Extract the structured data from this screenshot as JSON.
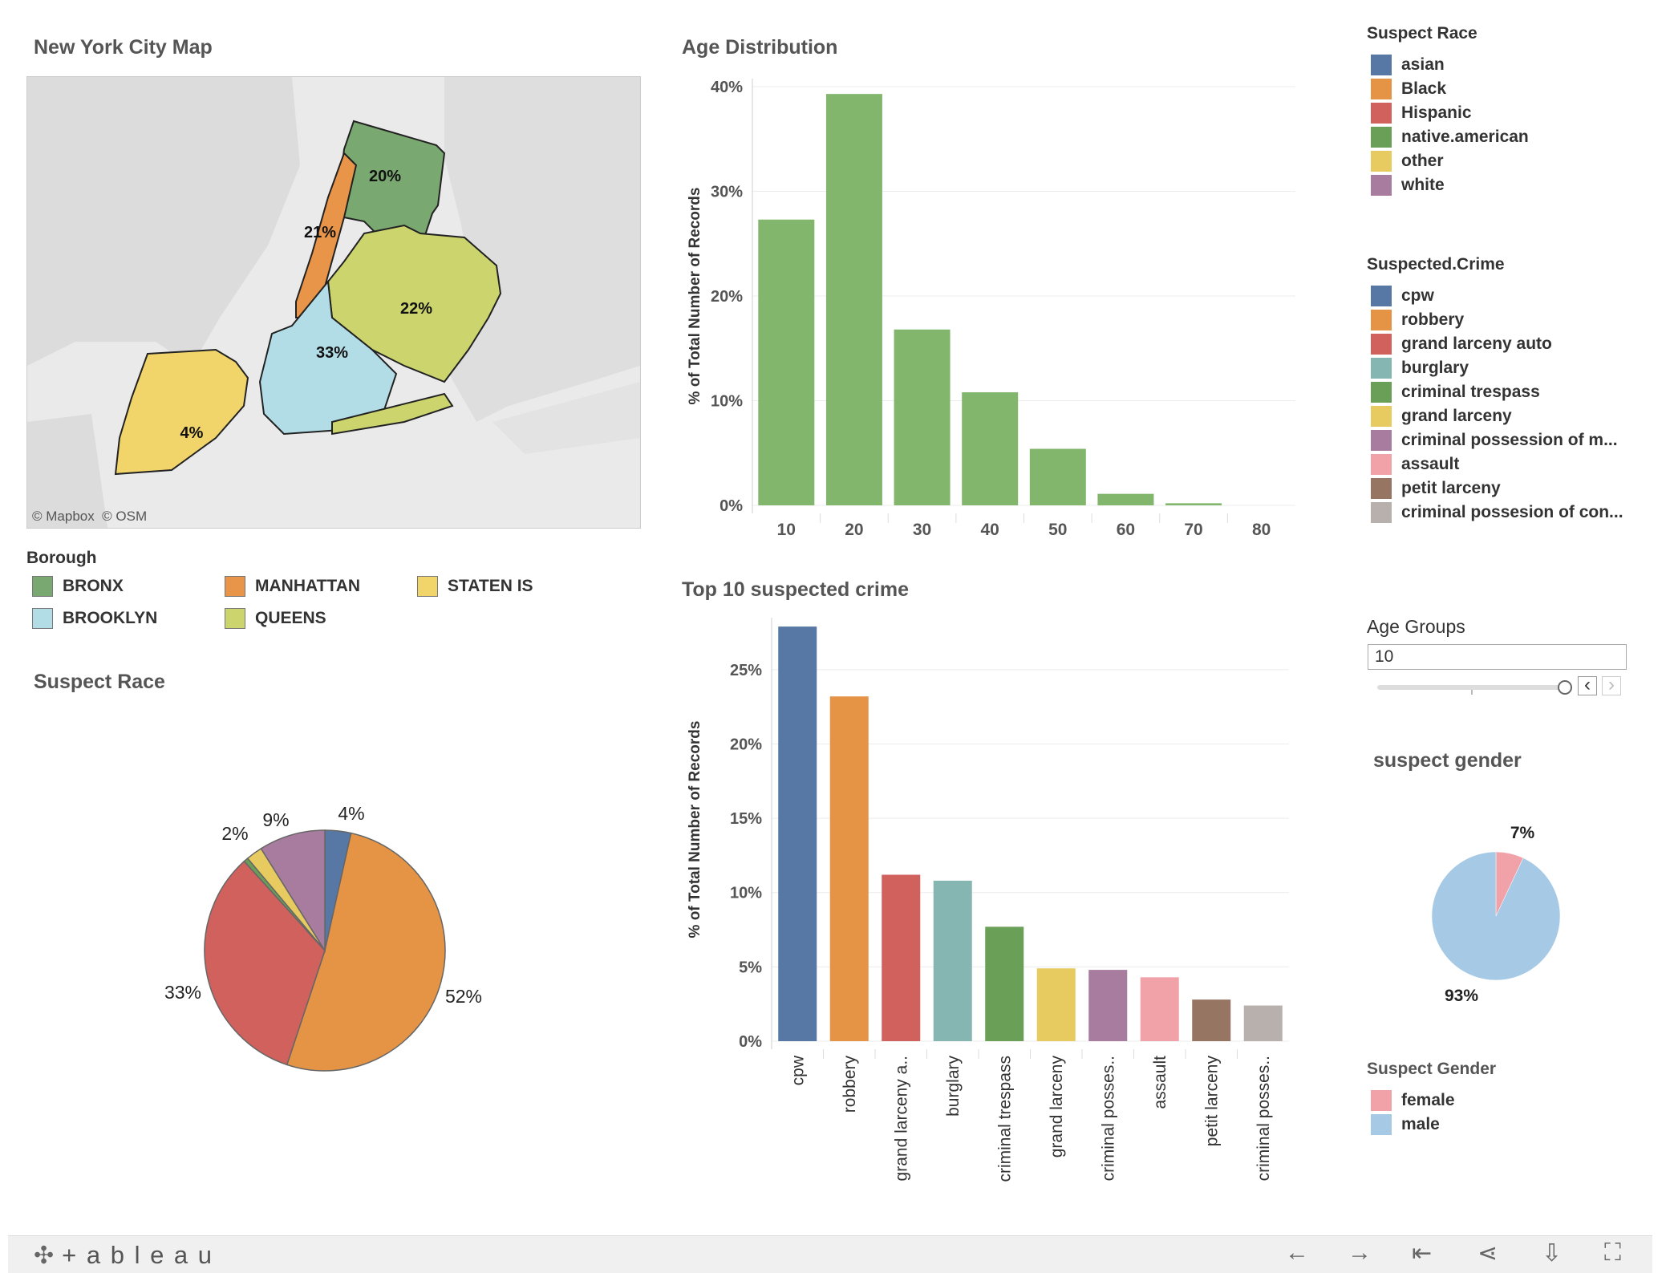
{
  "map": {
    "title": "New York City Map",
    "attribution": "© Mapbox  © OSM",
    "boroughs": [
      {
        "name": "BRONX",
        "label": "20%",
        "color": "#7aa871"
      },
      {
        "name": "MANHATTAN",
        "label": "21%",
        "color": "#e8954a"
      },
      {
        "name": "QUEENS",
        "label": "22%",
        "color": "#ccd46e"
      },
      {
        "name": "BROOKLYN",
        "label": "33%",
        "color": "#b3dde6"
      },
      {
        "name": "STATEN IS",
        "label": "4%",
        "color": "#f2d56a"
      }
    ]
  },
  "borough_legend": {
    "title": "Borough",
    "items": [
      {
        "label": "BRONX",
        "color": "#7aa871"
      },
      {
        "label": "MANHATTAN",
        "color": "#e8954a"
      },
      {
        "label": "STATEN IS",
        "color": "#f2d56a"
      },
      {
        "label": "BROOKLYN",
        "color": "#b3dde6"
      },
      {
        "label": "QUEENS",
        "color": "#ccd46e"
      }
    ]
  },
  "race_pie": {
    "title": "Suspect Race"
  },
  "age_chart": {
    "title": "Age Distribution"
  },
  "crime_chart": {
    "title": "Top 10 suspected crime"
  },
  "suspect_race_legend": {
    "title": "Suspect Race",
    "items": [
      {
        "label": "asian",
        "color": "#5778a4"
      },
      {
        "label": "Black",
        "color": "#e49444"
      },
      {
        "label": "Hispanic",
        "color": "#d1615d"
      },
      {
        "label": "native.american",
        "color": "#6a9f58"
      },
      {
        "label": "other",
        "color": "#e7ca60"
      },
      {
        "label": "white",
        "color": "#a87c9f"
      }
    ]
  },
  "crime_legend": {
    "title": "Suspected.Crime",
    "items": [
      {
        "label": "cpw",
        "color": "#5778a4"
      },
      {
        "label": "robbery",
        "color": "#e49444"
      },
      {
        "label": "grand larceny auto",
        "color": "#d1615d"
      },
      {
        "label": "burglary",
        "color": "#85b6b2"
      },
      {
        "label": "criminal trespass",
        "color": "#6a9f58"
      },
      {
        "label": "grand larceny",
        "color": "#e7ca60"
      },
      {
        "label": "criminal possession of m...",
        "color": "#a87c9f"
      },
      {
        "label": "assault",
        "color": "#f1a2a9"
      },
      {
        "label": "petit larceny",
        "color": "#967662"
      },
      {
        "label": "criminal possesion of con...",
        "color": "#b8b0ac"
      }
    ]
  },
  "age_filter": {
    "title": "Age Groups",
    "value": "10",
    "prev": "‹",
    "next": "›"
  },
  "gender_pie": {
    "title": "suspect gender"
  },
  "gender_legend": {
    "title": "Suspect Gender",
    "items": [
      {
        "label": "female",
        "color": "#f1a2a9"
      },
      {
        "label": "male",
        "color": "#a6cae6"
      }
    ]
  },
  "footer": {
    "logo": "+ a b l e a u"
  },
  "chart_data": [
    {
      "type": "bar",
      "title": "Age Distribution",
      "categories": [
        "10",
        "20",
        "30",
        "40",
        "50",
        "60",
        "70",
        "80"
      ],
      "values": [
        27.3,
        39.3,
        16.8,
        10.8,
        5.4,
        1.1,
        0.2,
        0
      ],
      "ylabel": "% of Total Number of Records",
      "ylim": [
        0,
        40
      ],
      "yticks": [
        "0%",
        "10%",
        "20%",
        "30%",
        "40%"
      ],
      "color": "#82b66c",
      "grid": true
    },
    {
      "type": "bar",
      "title": "Top 10 suspected crime",
      "categories": [
        "cpw",
        "robbery",
        "grand larceny a..",
        "burglary",
        "criminal trespass",
        "grand larceny",
        "criminal posses..",
        "assault",
        "petit larceny",
        "criminal posses.."
      ],
      "values": [
        27.9,
        23.2,
        11.2,
        10.8,
        7.7,
        4.9,
        4.8,
        4.3,
        2.8,
        2.4
      ],
      "colors": [
        "#5778a4",
        "#e49444",
        "#d1615d",
        "#85b6b2",
        "#6a9f58",
        "#e7ca60",
        "#a87c9f",
        "#f1a2a9",
        "#967662",
        "#b8b0ac"
      ],
      "ylabel": "% of Total Number of Records",
      "ylim": [
        0,
        28.5
      ],
      "yticks": [
        "0%",
        "5%",
        "10%",
        "15%",
        "20%",
        "25%"
      ],
      "grid": true
    },
    {
      "type": "pie",
      "title": "Suspect Race",
      "labels": [
        "asian",
        "Black",
        "Hispanic",
        "native.american",
        "other",
        "white"
      ],
      "values": [
        3.5,
        51.6,
        33.2,
        0.6,
        2.2,
        8.9
      ],
      "display_labels": [
        "4%",
        "52%",
        "33%",
        "",
        "2%",
        "9%"
      ],
      "colors": [
        "#5778a4",
        "#e49444",
        "#d1615d",
        "#6a9f58",
        "#e7ca60",
        "#a87c9f"
      ]
    },
    {
      "type": "pie",
      "title": "suspect gender",
      "labels": [
        "female",
        "male"
      ],
      "values": [
        7,
        93
      ],
      "display_labels": [
        "7%",
        "93%"
      ],
      "colors": [
        "#f1a2a9",
        "#a6cae6"
      ]
    }
  ]
}
